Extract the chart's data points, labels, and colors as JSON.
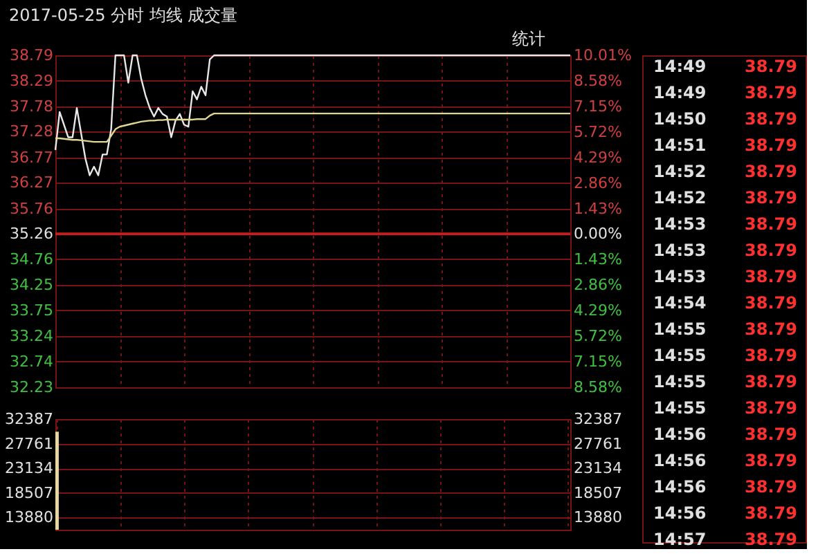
{
  "chart_data": [
    {
      "type": "line",
      "title": "2017-05-25 分时 均线 成交量",
      "categories": [
        null,
        null,
        null,
        null,
        null,
        null,
        null,
        null,
        null,
        null,
        null,
        null,
        null,
        null,
        null,
        null,
        null,
        null,
        null,
        null,
        null,
        null,
        null,
        null,
        null,
        null,
        null,
        null,
        null,
        null,
        null,
        null,
        null,
        null,
        null,
        null,
        null,
        null,
        null,
        null,
        null,
        null,
        null,
        null,
        null,
        null,
        null,
        null,
        null,
        null,
        null,
        null,
        null,
        null,
        null,
        null,
        null,
        null,
        null,
        null,
        null,
        null,
        null,
        null,
        null,
        null,
        null,
        null,
        null,
        null,
        null,
        null,
        null,
        null,
        null,
        null,
        null,
        null,
        null,
        null,
        null,
        null,
        null,
        null,
        null,
        null,
        null,
        null,
        null,
        null,
        null,
        null,
        null,
        null,
        null,
        null,
        null,
        null,
        null,
        null,
        null,
        null,
        null,
        null,
        null,
        null,
        null,
        null,
        null,
        null,
        null,
        null,
        null,
        null,
        null,
        null,
        null,
        null,
        null,
        null,
        null
      ],
      "series": [
        {
          "color": "#e8e8e8",
          "values": [
            36.92,
            37.67,
            37.42,
            37.17,
            37.17,
            37.75,
            37.25,
            36.75,
            36.42,
            36.59,
            36.42,
            36.83,
            36.83,
            37.33,
            38.79,
            38.79,
            38.79,
            38.25,
            38.79,
            38.79,
            38.33,
            38.0,
            37.75,
            37.58,
            37.75,
            37.63,
            37.58,
            37.17,
            37.5,
            37.63,
            37.42,
            37.38,
            38.08,
            37.92,
            38.17,
            38.0,
            38.71,
            38.79,
            38.79,
            38.79,
            38.79,
            38.79,
            38.79,
            38.79,
            38.79,
            38.79,
            38.79,
            38.79,
            38.79,
            38.79,
            38.79,
            38.79,
            38.79,
            38.79,
            38.79,
            38.79,
            38.79,
            38.79,
            38.79,
            38.79,
            38.79,
            38.79,
            38.79,
            38.79,
            38.79,
            38.79,
            38.79,
            38.79,
            38.79,
            38.79,
            38.79,
            38.79,
            38.79,
            38.79,
            38.79,
            38.79,
            38.79,
            38.79,
            38.79,
            38.79,
            38.79,
            38.79,
            38.79,
            38.79,
            38.79,
            38.79,
            38.79,
            38.79,
            38.79,
            38.79,
            38.79,
            38.79,
            38.79,
            38.79,
            38.79,
            38.79,
            38.79,
            38.79,
            38.79,
            38.79,
            38.79,
            38.79,
            38.79,
            38.79,
            38.79,
            38.79,
            38.79,
            38.79,
            38.79,
            38.79,
            38.79,
            38.79,
            38.79,
            38.79,
            38.79,
            38.79,
            38.79,
            38.79,
            38.79,
            38.79,
            38.79
          ]
        },
        {
          "color": "#e0d890",
          "values": [
            37.15,
            37.15,
            37.14,
            37.13,
            37.12,
            37.12,
            37.11,
            37.1,
            37.09,
            37.08,
            37.08,
            37.08,
            37.08,
            37.2,
            37.33,
            37.38,
            37.4,
            37.42,
            37.44,
            37.46,
            37.48,
            37.49,
            37.5,
            37.5,
            37.51,
            37.51,
            37.52,
            37.52,
            37.52,
            37.52,
            37.52,
            37.52,
            37.52,
            37.53,
            37.53,
            37.53,
            37.6,
            37.64,
            37.64,
            37.64,
            37.64,
            37.64,
            37.64,
            37.64,
            37.64,
            37.64,
            37.64,
            37.64,
            37.64,
            37.64,
            37.64,
            37.64,
            37.64,
            37.64,
            37.64,
            37.64,
            37.64,
            37.64,
            37.64,
            37.64,
            37.64,
            37.64,
            37.64,
            37.64,
            37.64,
            37.64,
            37.64,
            37.64,
            37.64,
            37.64,
            37.64,
            37.64,
            37.64,
            37.64,
            37.64,
            37.64,
            37.64,
            37.64,
            37.64,
            37.64,
            37.64,
            37.64,
            37.64,
            37.64,
            37.64,
            37.64,
            37.64,
            37.64,
            37.64,
            37.64,
            37.64,
            37.64,
            37.64,
            37.64,
            37.64,
            37.64,
            37.64,
            37.64,
            37.64,
            37.64,
            37.64,
            37.64,
            37.64,
            37.64,
            37.64,
            37.64,
            37.64,
            37.64,
            37.64,
            37.64,
            37.64,
            37.64,
            37.64,
            37.64,
            37.64,
            37.64,
            37.64,
            37.64,
            37.64,
            37.64,
            37.64
          ]
        }
      ],
      "ylim": [
        32.23,
        38.79
      ],
      "yticks": [
        38.79,
        38.29,
        37.78,
        37.28,
        36.77,
        36.27,
        35.76,
        35.26,
        34.76,
        34.25,
        33.75,
        33.24,
        32.74,
        32.23
      ],
      "y2lim": [
        -8.58,
        10.01
      ],
      "y2ticks": [
        {
          "value": 10.01,
          "label": "10.01%"
        },
        {
          "value": 8.58,
          "label": "8.58%"
        },
        {
          "value": 7.15,
          "label": "7.15%"
        },
        {
          "value": 5.72,
          "label": "5.72%"
        },
        {
          "value": 4.29,
          "label": "4.29%"
        },
        {
          "value": 2.86,
          "label": "2.86%"
        },
        {
          "value": 1.43,
          "label": "1.43%"
        },
        {
          "value": 0,
          "label": "0.00%"
        },
        {
          "value": -1.43,
          "label": "1.43%"
        },
        {
          "value": -2.86,
          "label": "2.86%"
        },
        {
          "value": -4.29,
          "label": "4.29%"
        },
        {
          "value": -5.72,
          "label": "5.72%"
        },
        {
          "value": -7.15,
          "label": "7.15%"
        },
        {
          "value": -8.58,
          "label": "8.58%"
        }
      ],
      "ref_lines": [
        {
          "axis": "y",
          "value": 35.26,
          "color": "#c02020"
        }
      ],
      "grid": true,
      "tick_labels": "y",
      "annotations": [
        "统计",
        "14:49",
        "38.79",
        "14:49",
        "38.79",
        "14:50",
        "38.79",
        "14:51",
        "38.79",
        "14:52",
        "38.79",
        "14:52",
        "38.79",
        "14:53",
        "38.79",
        "14:53",
        "38.79",
        "14:53",
        "38.79",
        "14:54",
        "38.79",
        "14:55",
        "38.79",
        "14:55",
        "38.79",
        "14:55",
        "38.79",
        "14:55",
        "38.79",
        "14:56",
        "38.79",
        "14:56",
        "38.79",
        "14:56",
        "38.79",
        "14:56",
        "38.79",
        "14:57",
        "38.79"
      ]
    },
    {
      "type": "bar",
      "categories": [
        null,
        null,
        null,
        null,
        null,
        null,
        null,
        null,
        null,
        null,
        null,
        null,
        null,
        null,
        null,
        null,
        null,
        null,
        null,
        null,
        null,
        null,
        null,
        null,
        null,
        null,
        null,
        null,
        null,
        null,
        null,
        null,
        null,
        null,
        null,
        null,
        null,
        null,
        null,
        null,
        null,
        null,
        null,
        null,
        null,
        null,
        null,
        null,
        null,
        null,
        null,
        null,
        null,
        null,
        null,
        null,
        null,
        null,
        null,
        null,
        null,
        null,
        null,
        null,
        null,
        null,
        null,
        null,
        null,
        null,
        null,
        null,
        null,
        null,
        null,
        null,
        null,
        null,
        null,
        null,
        null,
        null,
        null,
        null,
        null,
        null,
        null,
        null,
        null,
        null,
        null,
        null,
        null,
        null,
        null,
        null,
        null,
        null,
        null,
        null,
        null,
        null,
        null,
        null,
        null,
        null,
        null,
        null,
        null,
        null,
        null,
        null,
        null,
        null,
        null,
        null,
        null,
        null,
        null,
        null,
        null
      ],
      "values": [
        30000,
        null,
        null,
        null,
        null,
        null,
        null,
        null,
        null,
        null,
        null,
        null,
        null,
        null,
        null,
        null,
        null,
        null,
        null,
        null,
        null,
        null,
        null,
        null,
        null,
        null,
        null,
        null,
        null,
        null,
        null,
        null,
        null,
        null,
        null,
        null,
        null,
        null,
        null,
        null,
        null,
        null,
        null,
        null,
        null,
        null,
        null,
        null,
        null,
        null,
        null,
        null,
        null,
        null,
        null,
        null,
        null,
        null,
        null,
        null,
        null,
        null,
        null,
        null,
        null,
        null,
        null,
        null,
        null,
        null,
        null,
        null,
        null,
        null,
        null,
        null,
        null,
        null,
        null,
        null,
        null,
        null,
        null,
        null,
        null,
        null,
        null,
        null,
        null,
        null,
        null,
        null,
        null,
        null,
        null,
        null,
        null,
        null,
        null,
        null,
        null,
        null,
        null,
        null,
        null,
        null,
        null,
        null,
        null,
        null,
        null,
        null,
        null,
        null,
        null,
        null,
        null,
        null,
        null,
        null,
        null
      ],
      "color": "#e8d8a0",
      "ylim": [
        11567,
        32387
      ],
      "yticks": [
        32387,
        27761,
        23134,
        18507,
        13880
      ],
      "y2lim": [
        11567,
        32387
      ],
      "y2ticks": [
        32387,
        27761,
        23134,
        18507,
        13880
      ],
      "grid": true,
      "tick_labels": "y"
    }
  ]
}
